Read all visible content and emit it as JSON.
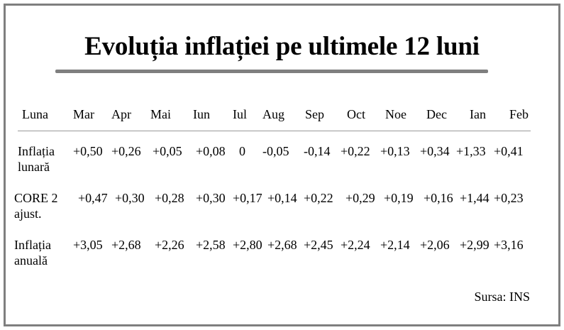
{
  "chart_data": {
    "type": "table",
    "title": "Evoluția inflației pe ultimele 12 luni",
    "corner_label": "Luna",
    "columns": [
      "Mar",
      "Apr",
      "Mai",
      "Iun",
      "Iul",
      "Aug",
      "Sep",
      "Oct",
      "Noe",
      "Dec",
      "Ian",
      "Feb"
    ],
    "rows": [
      {
        "label_lines": [
          "Inflația",
          "lunară"
        ],
        "values": [
          "+0,50",
          "+0,26",
          "+0,05",
          "+0,08",
          "0",
          "-0,05",
          "-0,14",
          "+0,22",
          "+0,13",
          "+0,34",
          "+1,33",
          "+0,41"
        ]
      },
      {
        "label_lines": [
          "CORE 2",
          "ajust."
        ],
        "values": [
          "+0,47",
          "+0,30",
          "+0,28",
          "+0,30",
          "+0,17",
          "+0,14",
          "+0,22",
          "+0,29",
          "+0,19",
          "+0,16",
          "+1,44",
          "+0,23"
        ]
      },
      {
        "label_lines": [
          "Inflația",
          "anuală"
        ],
        "values": [
          "+3,05",
          "+2,68",
          "+2,26",
          "+2,58",
          "+2,80",
          "+2,68",
          "+2,45",
          "+2,24",
          "+2,14",
          "+2,06",
          "+2,99",
          "+3,16"
        ]
      }
    ],
    "source": "Sursa: INS"
  }
}
